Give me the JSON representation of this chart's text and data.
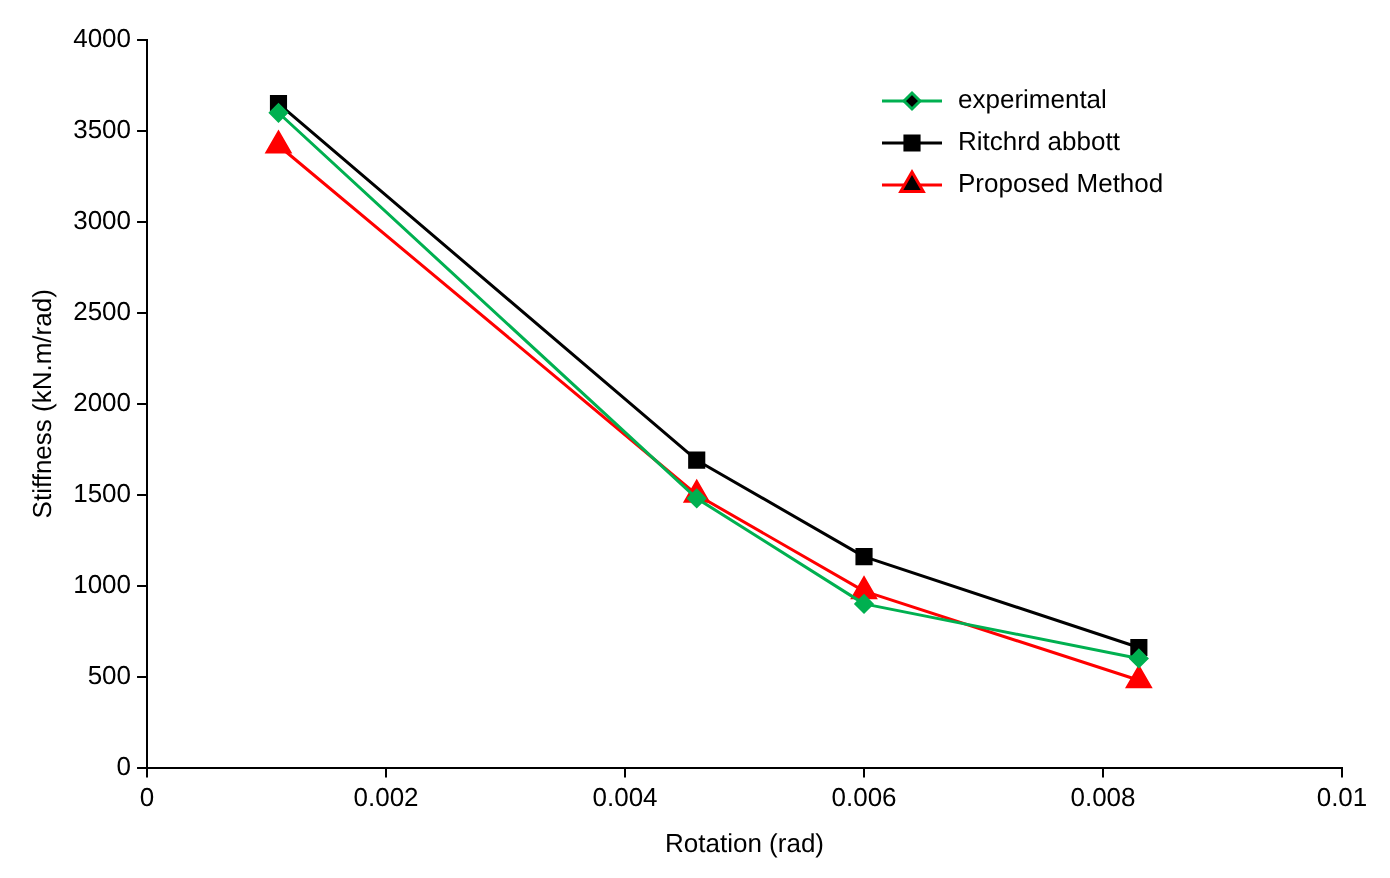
{
  "chart_data": {
    "type": "line",
    "xlabel": "Rotation (rad)",
    "ylabel": "Stiffness (kN.m/rad)",
    "x": [
      0.0011,
      0.0046,
      0.006,
      0.0083
    ],
    "series": [
      {
        "name": "experimental",
        "color": "#00b050",
        "marker": "diamond",
        "values": [
          3600,
          1480,
          900,
          600
        ]
      },
      {
        "name": "Ritchrd abbott",
        "color": "#000000",
        "marker": "square",
        "values": [
          3650,
          1690,
          1160,
          660
        ]
      },
      {
        "name": "Proposed Method",
        "color": "#ff0000",
        "marker": "triangle",
        "values": [
          3420,
          1500,
          970,
          480
        ]
      }
    ],
    "xlim": [
      0,
      0.01
    ],
    "xticks": [
      0,
      0.002,
      0.004,
      0.006,
      0.008,
      0.01
    ],
    "ylim": [
      0,
      4000
    ],
    "yticks": [
      0,
      500,
      1000,
      1500,
      2000,
      2500,
      3000,
      3500,
      4000
    ],
    "grid": false,
    "legend": "top right",
    "line_style": "solid"
  }
}
